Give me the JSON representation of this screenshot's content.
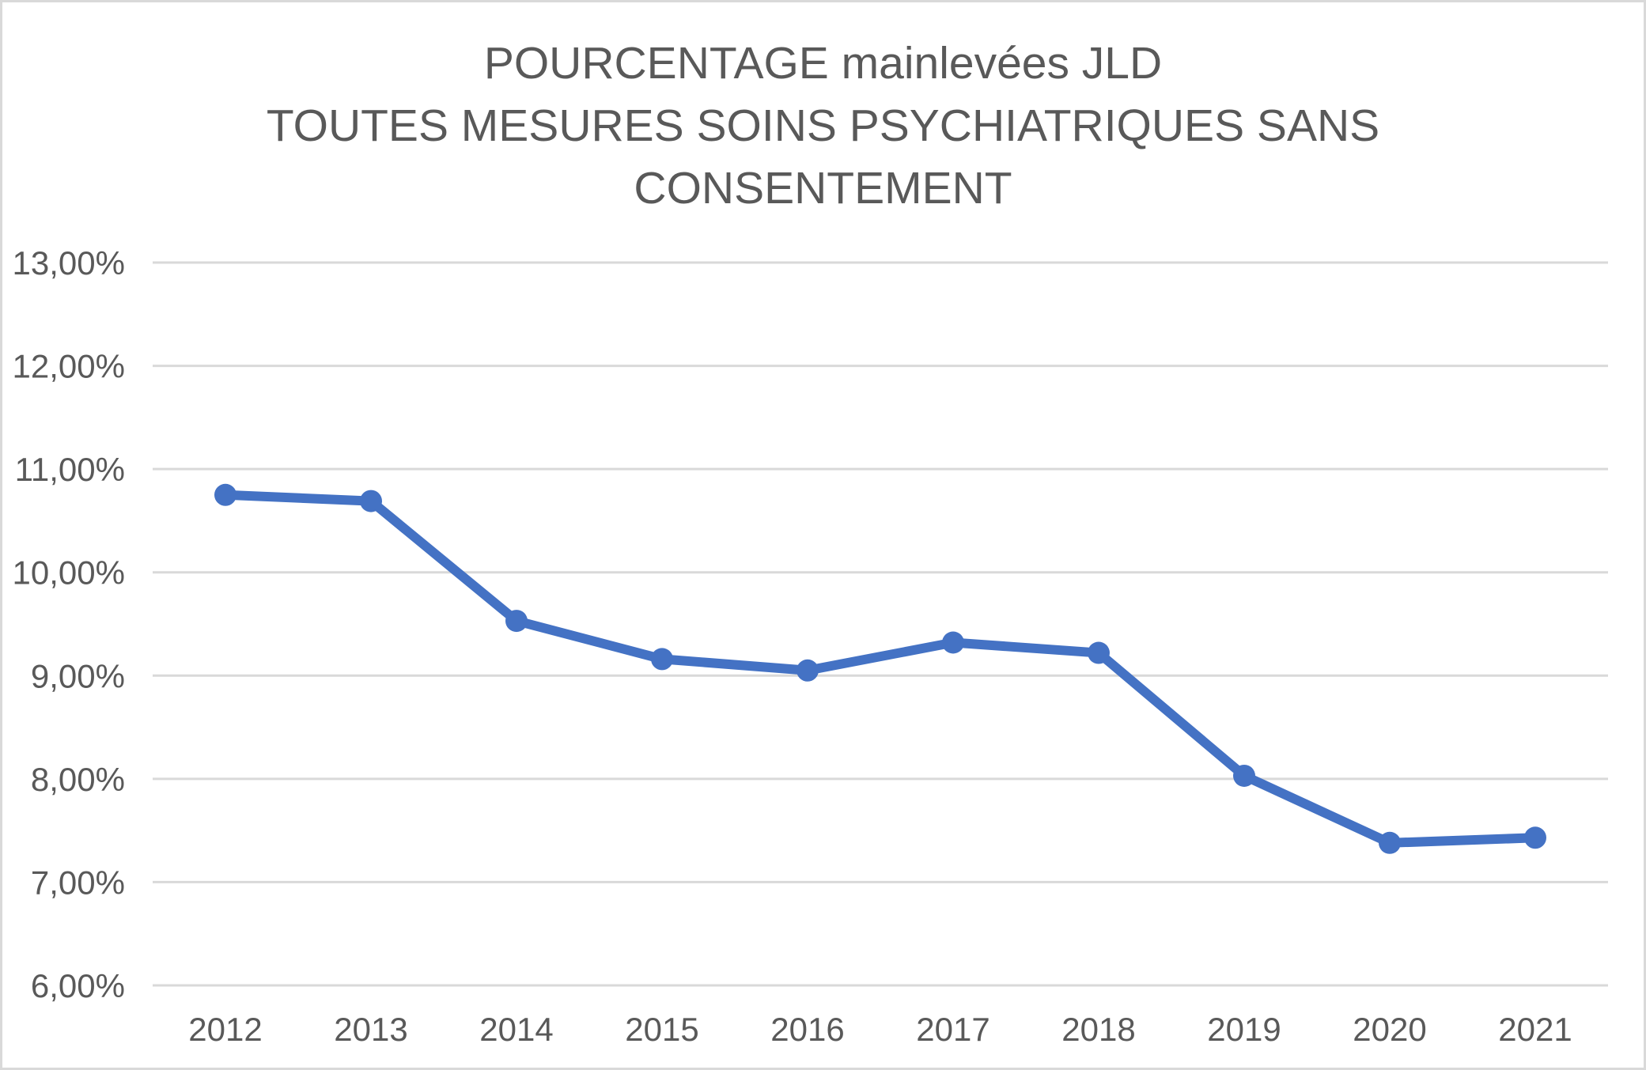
{
  "chart_data": {
    "type": "line",
    "title_lines": [
      "POURCENTAGE mainlevées JLD",
      "TOUTES MESURES SOINS PSYCHIATRIQUES SANS",
      "CONSENTEMENT"
    ],
    "categories": [
      "2012",
      "2013",
      "2014",
      "2015",
      "2016",
      "2017",
      "2018",
      "2019",
      "2020",
      "2021"
    ],
    "values": [
      10.75,
      10.69,
      9.53,
      9.16,
      9.05,
      9.32,
      9.22,
      8.03,
      7.38,
      7.43
    ],
    "ylim": [
      6,
      13
    ],
    "y_ticks": [
      13,
      12,
      11,
      10,
      9,
      8,
      7,
      6
    ],
    "y_tick_labels": [
      "13,00%",
      "12,00%",
      "11,00%",
      "10,00%",
      "9,00%",
      "8,00%",
      "7,00%",
      "6,00%"
    ],
    "xlabel": "",
    "ylabel": "",
    "grid": true,
    "legend_position": "none",
    "colors": {
      "line": "#4472C4",
      "marker": "#4472C4",
      "grid": "#D9D9D9",
      "text": "#595959",
      "border": "#D9D9D9",
      "background": "#FFFFFF"
    }
  }
}
